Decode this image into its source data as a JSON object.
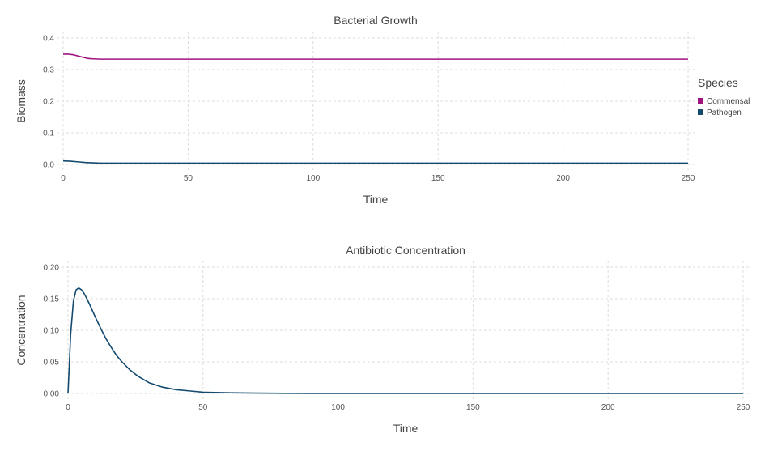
{
  "chart_data": [
    {
      "type": "line",
      "title": "Bacterial Growth",
      "xlabel": "Time",
      "ylabel": "Biomass",
      "xlim": [
        0,
        250
      ],
      "ylim": [
        0,
        0.4
      ],
      "xticks": [
        "0",
        "50",
        "100",
        "150",
        "200",
        "250"
      ],
      "yticks": [
        "0.0",
        "0.1",
        "0.2",
        "0.3",
        "0.4"
      ],
      "grid": true,
      "legend": {
        "title": "Species",
        "position": "right"
      },
      "series": [
        {
          "name": "Commensal",
          "color": "#a0137e",
          "x": [
            0,
            2,
            4,
            6,
            8,
            10,
            12,
            15,
            20,
            30,
            50,
            100,
            150,
            200,
            250
          ],
          "y": [
            0.349,
            0.349,
            0.347,
            0.343,
            0.339,
            0.335,
            0.334,
            0.333,
            0.333,
            0.333,
            0.333,
            0.333,
            0.333,
            0.333,
            0.333
          ]
        },
        {
          "name": "Pathogen",
          "color": "#134a6e",
          "x": [
            0,
            3,
            6,
            9,
            12,
            15,
            20,
            30,
            50,
            100,
            150,
            200,
            250
          ],
          "y": [
            0.011,
            0.01,
            0.008,
            0.006,
            0.005,
            0.004,
            0.004,
            0.004,
            0.004,
            0.004,
            0.004,
            0.004,
            0.004
          ]
        }
      ]
    },
    {
      "type": "line",
      "title": "Antibiotic Concentration",
      "xlabel": "Time",
      "ylabel": "Concentration",
      "xlim": [
        0,
        250
      ],
      "ylim": [
        0,
        0.2
      ],
      "xticks": [
        "0",
        "50",
        "100",
        "150",
        "200",
        "250"
      ],
      "yticks": [
        "0.00",
        "0.05",
        "0.10",
        "0.15",
        "0.20"
      ],
      "grid": true,
      "series": [
        {
          "color": "#134a6e",
          "x": [
            0,
            1,
            2,
            3,
            4,
            5,
            6,
            7,
            8,
            10,
            12,
            14,
            16,
            18,
            20,
            23,
            26,
            30,
            35,
            40,
            45,
            50,
            60,
            70,
            80,
            100,
            150,
            200,
            250
          ],
          "y": [
            0.0,
            0.095,
            0.146,
            0.164,
            0.167,
            0.164,
            0.158,
            0.15,
            0.141,
            0.122,
            0.104,
            0.087,
            0.073,
            0.06,
            0.05,
            0.037,
            0.027,
            0.017,
            0.01,
            0.006,
            0.004,
            0.002,
            0.001,
            0.0005,
            0.0002,
            0.0,
            0.0,
            0.0,
            0.0
          ]
        }
      ]
    }
  ]
}
